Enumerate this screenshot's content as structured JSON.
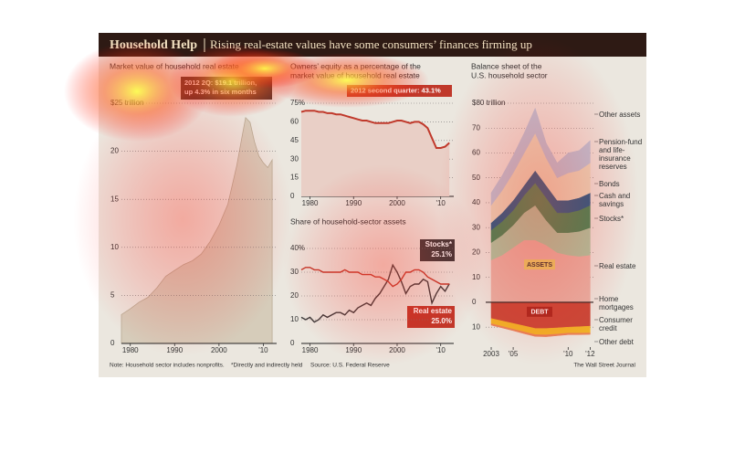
{
  "header": {
    "title": "Household Help",
    "subtitle": "Rising real-estate values have some consumers’ finances firming up"
  },
  "footer": {
    "note": "Note: Household sector includes nonprofits.",
    "footnote": "*Directly and indirectly held",
    "source": "Source: U.S. Federal Reserve",
    "credit": "The Wall Street Journal"
  },
  "chart_data": [
    {
      "type": "area",
      "title": "Market value of household real estate",
      "x": [
        1978,
        1980,
        1982,
        1984,
        1986,
        1988,
        1990,
        1992,
        1994,
        1996,
        1998,
        2000,
        2002,
        2004,
        2005,
        2006,
        2007,
        2008,
        2009,
        2010,
        2011,
        2012
      ],
      "values": [
        3.0,
        3.6,
        4.3,
        4.8,
        5.8,
        7.0,
        7.6,
        8.2,
        8.6,
        9.3,
        10.6,
        12.3,
        14.5,
        18.5,
        21,
        23.5,
        23.0,
        21.0,
        19.5,
        18.8,
        18.3,
        19.1
      ],
      "color": "#d6ccba",
      "xlim": [
        1978,
        2013
      ],
      "xticks": [
        1980,
        1990,
        2000,
        {
          "value": 2010,
          "label": "'10"
        }
      ],
      "ylim": [
        0,
        25
      ],
      "yticks": [
        0,
        5,
        10,
        15,
        20,
        {
          "value": 25,
          "label": "$25 trillion"
        }
      ],
      "grid": true,
      "annotations": [
        "2012 2Q: $19.1 trillion,",
        "up 4.3% in six months"
      ]
    },
    {
      "type": "line",
      "title": [
        "Owners’ equity as a percentage of the",
        "market value of household real estate"
      ],
      "x": [
        1978,
        1979,
        1980,
        1981,
        1982,
        1983,
        1984,
        1985,
        1986,
        1987,
        1988,
        1989,
        1990,
        1991,
        1992,
        1993,
        1994,
        1995,
        1996,
        1997,
        1998,
        1999,
        2000,
        2001,
        2002,
        2003,
        2004,
        2005,
        2006,
        2007,
        2008,
        2009,
        2010,
        2011,
        2012
      ],
      "series": [
        {
          "color": "#c0392b",
          "values": [
            68,
            69,
            69,
            69,
            68,
            68,
            67,
            67,
            66,
            66,
            65,
            64,
            63,
            62,
            61,
            61,
            60,
            59,
            59,
            59,
            59,
            60,
            61,
            61,
            60,
            59,
            60,
            60,
            58,
            55,
            47,
            39,
            39,
            40,
            43.1
          ]
        }
      ],
      "fill": true,
      "xlim": [
        1978,
        2013
      ],
      "xticks": [
        1980,
        1990,
        2000,
        {
          "value": 2010,
          "label": "'10"
        }
      ],
      "ylim": [
        0,
        75
      ],
      "yticks": [
        0,
        15,
        30,
        45,
        60,
        {
          "value": 75,
          "label": "75%"
        }
      ],
      "grid": true,
      "annotations": [
        "2012 second quarter: 43.1%"
      ]
    },
    {
      "type": "line",
      "title": "Share of household-sector assets",
      "x": [
        1978,
        1979,
        1980,
        1981,
        1982,
        1983,
        1984,
        1985,
        1986,
        1987,
        1988,
        1989,
        1990,
        1991,
        1992,
        1993,
        1994,
        1995,
        1996,
        1997,
        1998,
        1999,
        2000,
        2001,
        2002,
        2003,
        2004,
        2005,
        2006,
        2007,
        2008,
        2009,
        2010,
        2011,
        2012
      ],
      "series": [
        {
          "name": "Stocks*",
          "color": "#3a3a3a",
          "values": [
            11,
            10,
            11,
            9,
            10,
            12,
            11,
            12,
            13,
            13,
            12,
            14,
            13,
            15,
            16,
            17,
            16,
            19,
            21,
            24,
            27,
            33,
            30,
            26,
            21,
            24,
            25,
            25,
            27,
            26,
            17,
            21,
            24,
            22,
            25.1
          ],
          "value_labels": [
            null,
            null,
            null,
            null,
            null,
            null,
            null,
            null,
            null,
            null,
            null,
            null,
            null,
            null,
            null,
            null,
            null,
            null,
            null,
            null,
            null,
            null,
            null,
            null,
            null,
            null,
            null,
            null,
            null,
            null,
            null,
            null,
            null,
            null,
            "25.1%"
          ]
        },
        {
          "name": "Real estate",
          "color": "#c0392b",
          "values": [
            31,
            32,
            32,
            31,
            31,
            30,
            30,
            30,
            30,
            30,
            31,
            30,
            30,
            30,
            29,
            29,
            29,
            28,
            28,
            27,
            26,
            24,
            25,
            27,
            30,
            30,
            31,
            31,
            30,
            28,
            27,
            26,
            25,
            25,
            25.0
          ],
          "value_labels": [
            null,
            null,
            null,
            null,
            null,
            null,
            null,
            null,
            null,
            null,
            null,
            null,
            null,
            null,
            null,
            null,
            null,
            null,
            null,
            null,
            null,
            null,
            null,
            null,
            null,
            null,
            null,
            null,
            null,
            null,
            null,
            null,
            null,
            null,
            "25.0%"
          ]
        }
      ],
      "fill": false,
      "xlim": [
        1978,
        2013
      ],
      "xticks": [
        1980,
        1990,
        2000,
        {
          "value": 2010,
          "label": "'10"
        }
      ],
      "ylim": [
        0,
        40
      ],
      "yticks": [
        0,
        10,
        20,
        30,
        {
          "value": 40,
          "label": "40%"
        }
      ],
      "grid": true
    },
    {
      "type": "stacked_area",
      "title": [
        "Balance sheet of the",
        "U.S. household sector"
      ],
      "x": [
        2003,
        2004,
        2005,
        2006,
        2007,
        2008,
        2009,
        2010,
        2011,
        2012
      ],
      "series": [
        {
          "name": "Real estate",
          "color": "#e6b3a6",
          "values": [
            17,
            19,
            22,
            25,
            25,
            23,
            20,
            19,
            18.5,
            19
          ]
        },
        {
          "name": "Stocks*",
          "color": "#a9c9a4",
          "values": [
            7,
            8,
            9,
            11,
            14,
            10,
            8,
            9,
            10,
            11
          ]
        },
        {
          "name": "Cash and savings",
          "color": "#3f8a5a",
          "values": [
            5,
            5.5,
            6,
            7,
            9,
            9,
            8,
            8,
            8.5,
            9
          ]
        },
        {
          "name": "Bonds",
          "color": "#1f5f8b",
          "values": [
            3,
            3.5,
            4,
            4,
            5,
            5,
            5,
            5,
            5,
            5
          ]
        },
        {
          "name": "Pension-fund and life-insurance reserves",
          "color": "#e6dcc0",
          "values": [
            7,
            9,
            11,
            13,
            15,
            11,
            9,
            11,
            11,
            12
          ]
        },
        {
          "name": "Other assets",
          "color": "#b9c8dc",
          "values": [
            5,
            6,
            7,
            8,
            10,
            6,
            6,
            8,
            8,
            9
          ]
        },
        {
          "name": "Home mortgages",
          "color": "#c84a3a",
          "values": [
            -6.5,
            -7.5,
            -8.5,
            -9.5,
            -10.5,
            -10.5,
            -10.3,
            -10,
            -9.8,
            -9.6
          ]
        },
        {
          "name": "Consumer credit",
          "color": "#f0b429",
          "values": [
            -2.1,
            -2.2,
            -2.3,
            -2.4,
            -2.5,
            -2.6,
            -2.5,
            -2.4,
            -2.6,
            -2.7
          ]
        },
        {
          "name": "Other debt",
          "color": "#e8845a",
          "values": [
            -0.6,
            -0.6,
            -0.6,
            -0.7,
            -0.7,
            -0.7,
            -0.6,
            -0.6,
            -0.6,
            -0.6
          ]
        }
      ],
      "xlim": [
        2002.5,
        2012.3
      ],
      "xticks": [
        2003,
        {
          "value": 2005,
          "label": "'05"
        },
        {
          "value": 2010,
          "label": "'10"
        },
        {
          "value": 2012,
          "label": "'12"
        }
      ],
      "ylim": [
        -18,
        80
      ],
      "yticks": [
        {
          "value": -10,
          "label": "10"
        },
        0,
        10,
        20,
        30,
        40,
        50,
        60,
        70,
        {
          "value": 80,
          "label": "$80 trillion"
        }
      ],
      "grid": true,
      "annotations": [
        "ASSETS",
        "DEBT"
      ]
    }
  ]
}
